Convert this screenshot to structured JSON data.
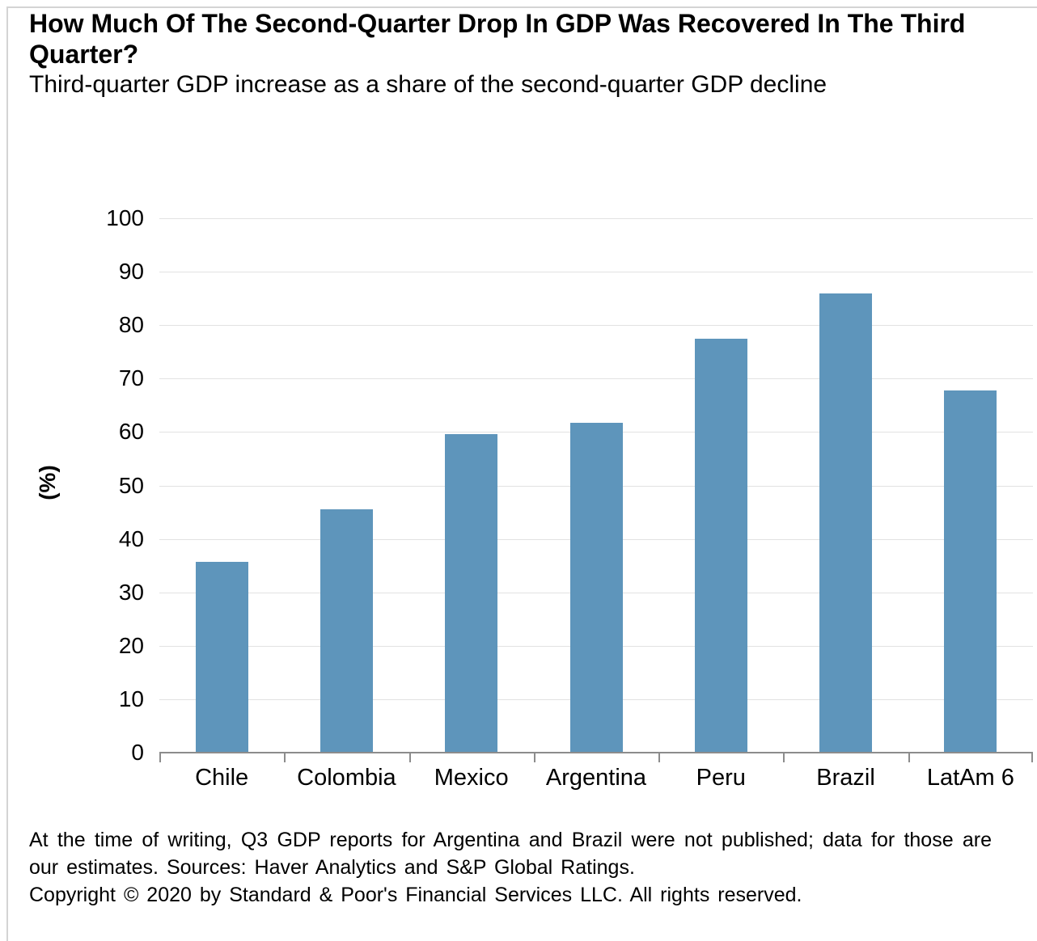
{
  "header": {
    "title": "How Much Of The Second-Quarter Drop In GDP Was Recovered In The Third Quarter?",
    "subtitle": "Third-quarter GDP increase as a share of the second-quarter GDP decline"
  },
  "chart_data": {
    "type": "bar",
    "categories": [
      "Chile",
      "Colombia",
      "Mexico",
      "Argentina",
      "Peru",
      "Brazil",
      "LatAm 6"
    ],
    "values": [
      35.7,
      45.5,
      59.6,
      61.8,
      77.5,
      86.0,
      67.8
    ],
    "title": "How Much Of The Second-Quarter Drop In GDP Was Recovered In The Third Quarter?",
    "subtitle": "Third-quarter GDP increase as a share of the second-quarter GDP decline",
    "xlabel": "",
    "ylabel": "(%)",
    "ylim": [
      0,
      100
    ],
    "ytick_step": 10,
    "grid": true,
    "legend": "none",
    "bar_color": "#5e95bb",
    "gridline_color": "#e2e2e2",
    "axis_color": "#8c8c8c"
  },
  "footer": {
    "note": "At the time of writing, Q3 GDP reports for Argentina and Brazil were not published; data for those are our estimates. Sources: Haver Analytics and S&P Global Ratings.",
    "copyright": "Copyright © 2020 by Standard & Poor's Financial Services LLC. All rights reserved."
  }
}
